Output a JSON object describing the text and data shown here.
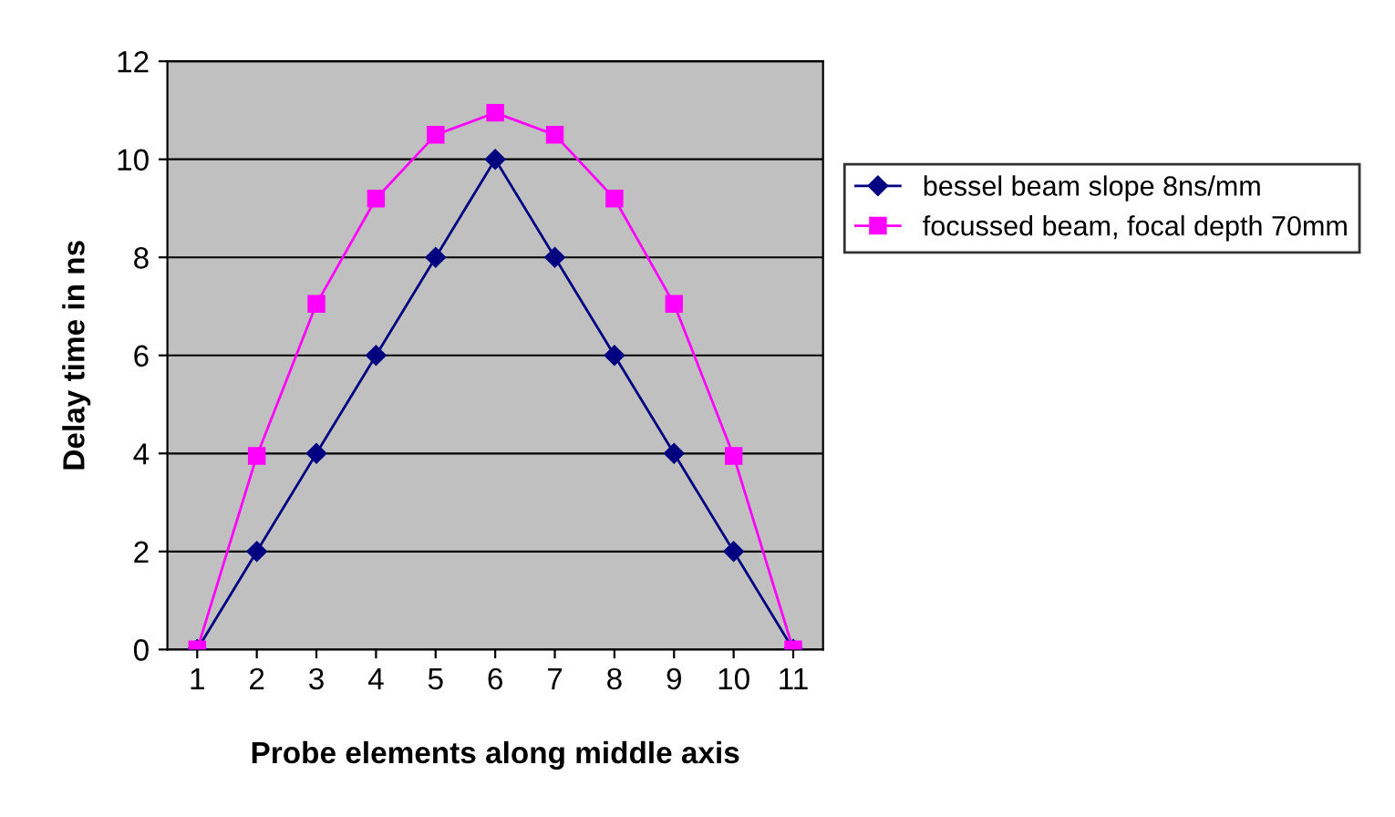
{
  "chart_data": {
    "type": "line",
    "xlabel": "Probe elements along middle axis",
    "ylabel": "Delay time in ns",
    "categories": [
      "1",
      "2",
      "3",
      "4",
      "5",
      "6",
      "7",
      "8",
      "9",
      "10",
      "11"
    ],
    "series": [
      {
        "name": "bessel beam slope 8ns/mm",
        "color": "#000080",
        "marker": "diamond",
        "values": [
          0,
          2,
          4,
          6,
          8,
          10,
          8,
          6,
          4,
          2,
          0
        ]
      },
      {
        "name": "focussed beam, focal depth 70mm",
        "color": "#ff00ff",
        "marker": "square",
        "values": [
          0,
          3.95,
          7.05,
          9.2,
          10.5,
          10.95,
          10.5,
          9.2,
          7.05,
          3.95,
          0
        ]
      }
    ],
    "ylim": [
      0,
      12
    ],
    "yticks": [
      0,
      2,
      4,
      6,
      8,
      10,
      12
    ],
    "grid": "y",
    "legend": "right",
    "line_style": "solid"
  }
}
